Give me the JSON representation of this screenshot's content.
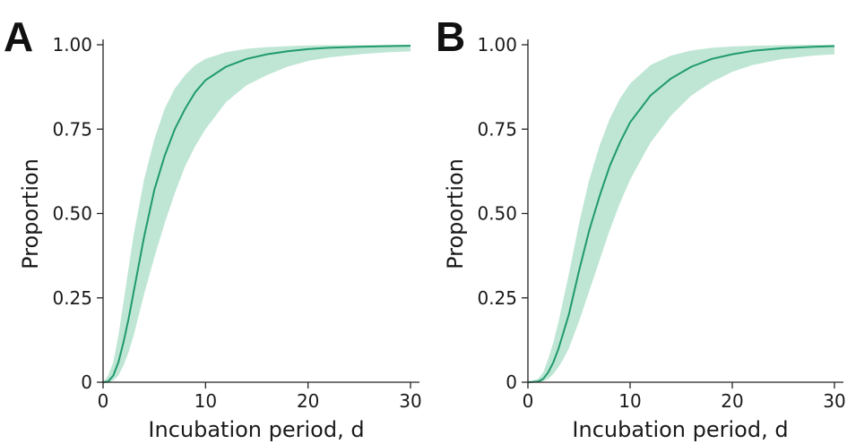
{
  "colors": {
    "line": "#1f9a6e",
    "band": "#bfe6d5"
  },
  "chart_data": [
    {
      "type": "line",
      "panel_label": "A",
      "xlabel": "Incubation period, d",
      "ylabel": "Proportion",
      "xlim": [
        0,
        30
      ],
      "ylim": [
        0,
        1
      ],
      "xticks": [
        0,
        10,
        20,
        30
      ],
      "xtick_labels": [
        "0",
        "10",
        "20",
        "30"
      ],
      "yticks": [
        0,
        0.25,
        0.5,
        0.75,
        1
      ],
      "ytick_labels": [
        "0",
        "0.25",
        "0.50",
        "0.75",
        "1.00"
      ],
      "grid": false,
      "x": [
        0,
        0.5,
        1,
        1.5,
        2,
        2.5,
        3,
        3.5,
        4,
        5,
        6,
        7,
        8,
        9,
        10,
        12,
        14,
        16,
        18,
        20,
        22,
        25,
        28,
        30
      ],
      "y": [
        0,
        0.002,
        0.02,
        0.06,
        0.12,
        0.19,
        0.27,
        0.35,
        0.43,
        0.57,
        0.67,
        0.75,
        0.81,
        0.86,
        0.895,
        0.935,
        0.958,
        0.972,
        0.981,
        0.987,
        0.991,
        0.994,
        0.996,
        0.997
      ],
      "band_lower": [
        0,
        0,
        0.005,
        0.02,
        0.05,
        0.09,
        0.14,
        0.2,
        0.26,
        0.37,
        0.47,
        0.56,
        0.64,
        0.7,
        0.75,
        0.83,
        0.88,
        0.91,
        0.935,
        0.952,
        0.962,
        0.972,
        0.978,
        0.98
      ],
      "band_upper": [
        0,
        0.02,
        0.06,
        0.14,
        0.24,
        0.34,
        0.44,
        0.52,
        0.6,
        0.72,
        0.81,
        0.87,
        0.91,
        0.94,
        0.958,
        0.978,
        0.988,
        0.993,
        0.996,
        0.998,
        0.999,
        0.999,
        1,
        1
      ]
    },
    {
      "type": "line",
      "panel_label": "B",
      "xlabel": "Incubation period, d",
      "ylabel": "Proportion",
      "xlim": [
        0,
        30
      ],
      "ylim": [
        0,
        1
      ],
      "xticks": [
        0,
        10,
        20,
        30
      ],
      "xtick_labels": [
        "0",
        "10",
        "20",
        "30"
      ],
      "yticks": [
        0,
        0.25,
        0.5,
        0.75,
        1
      ],
      "ytick_labels": [
        "0",
        "0.25",
        "0.50",
        "0.75",
        "1.00"
      ],
      "grid": false,
      "x": [
        0,
        1,
        1.5,
        2,
        2.5,
        3,
        3.5,
        4,
        5,
        6,
        7,
        8,
        9,
        10,
        12,
        14,
        16,
        18,
        20,
        22,
        25,
        28,
        30
      ],
      "y": [
        0,
        0.002,
        0.01,
        0.03,
        0.06,
        0.1,
        0.15,
        0.2,
        0.33,
        0.45,
        0.55,
        0.64,
        0.71,
        0.77,
        0.85,
        0.9,
        0.935,
        0.958,
        0.972,
        0.982,
        0.99,
        0.994,
        0.996
      ],
      "band_lower": [
        0,
        0,
        0.003,
        0.01,
        0.025,
        0.045,
        0.07,
        0.1,
        0.18,
        0.27,
        0.36,
        0.45,
        0.53,
        0.6,
        0.71,
        0.79,
        0.85,
        0.89,
        0.92,
        0.94,
        0.958,
        0.968,
        0.972
      ],
      "band_upper": [
        0,
        0.01,
        0.03,
        0.07,
        0.12,
        0.18,
        0.25,
        0.32,
        0.47,
        0.6,
        0.7,
        0.78,
        0.84,
        0.885,
        0.94,
        0.968,
        0.983,
        0.991,
        0.995,
        0.997,
        0.999,
        1,
        1
      ]
    }
  ]
}
